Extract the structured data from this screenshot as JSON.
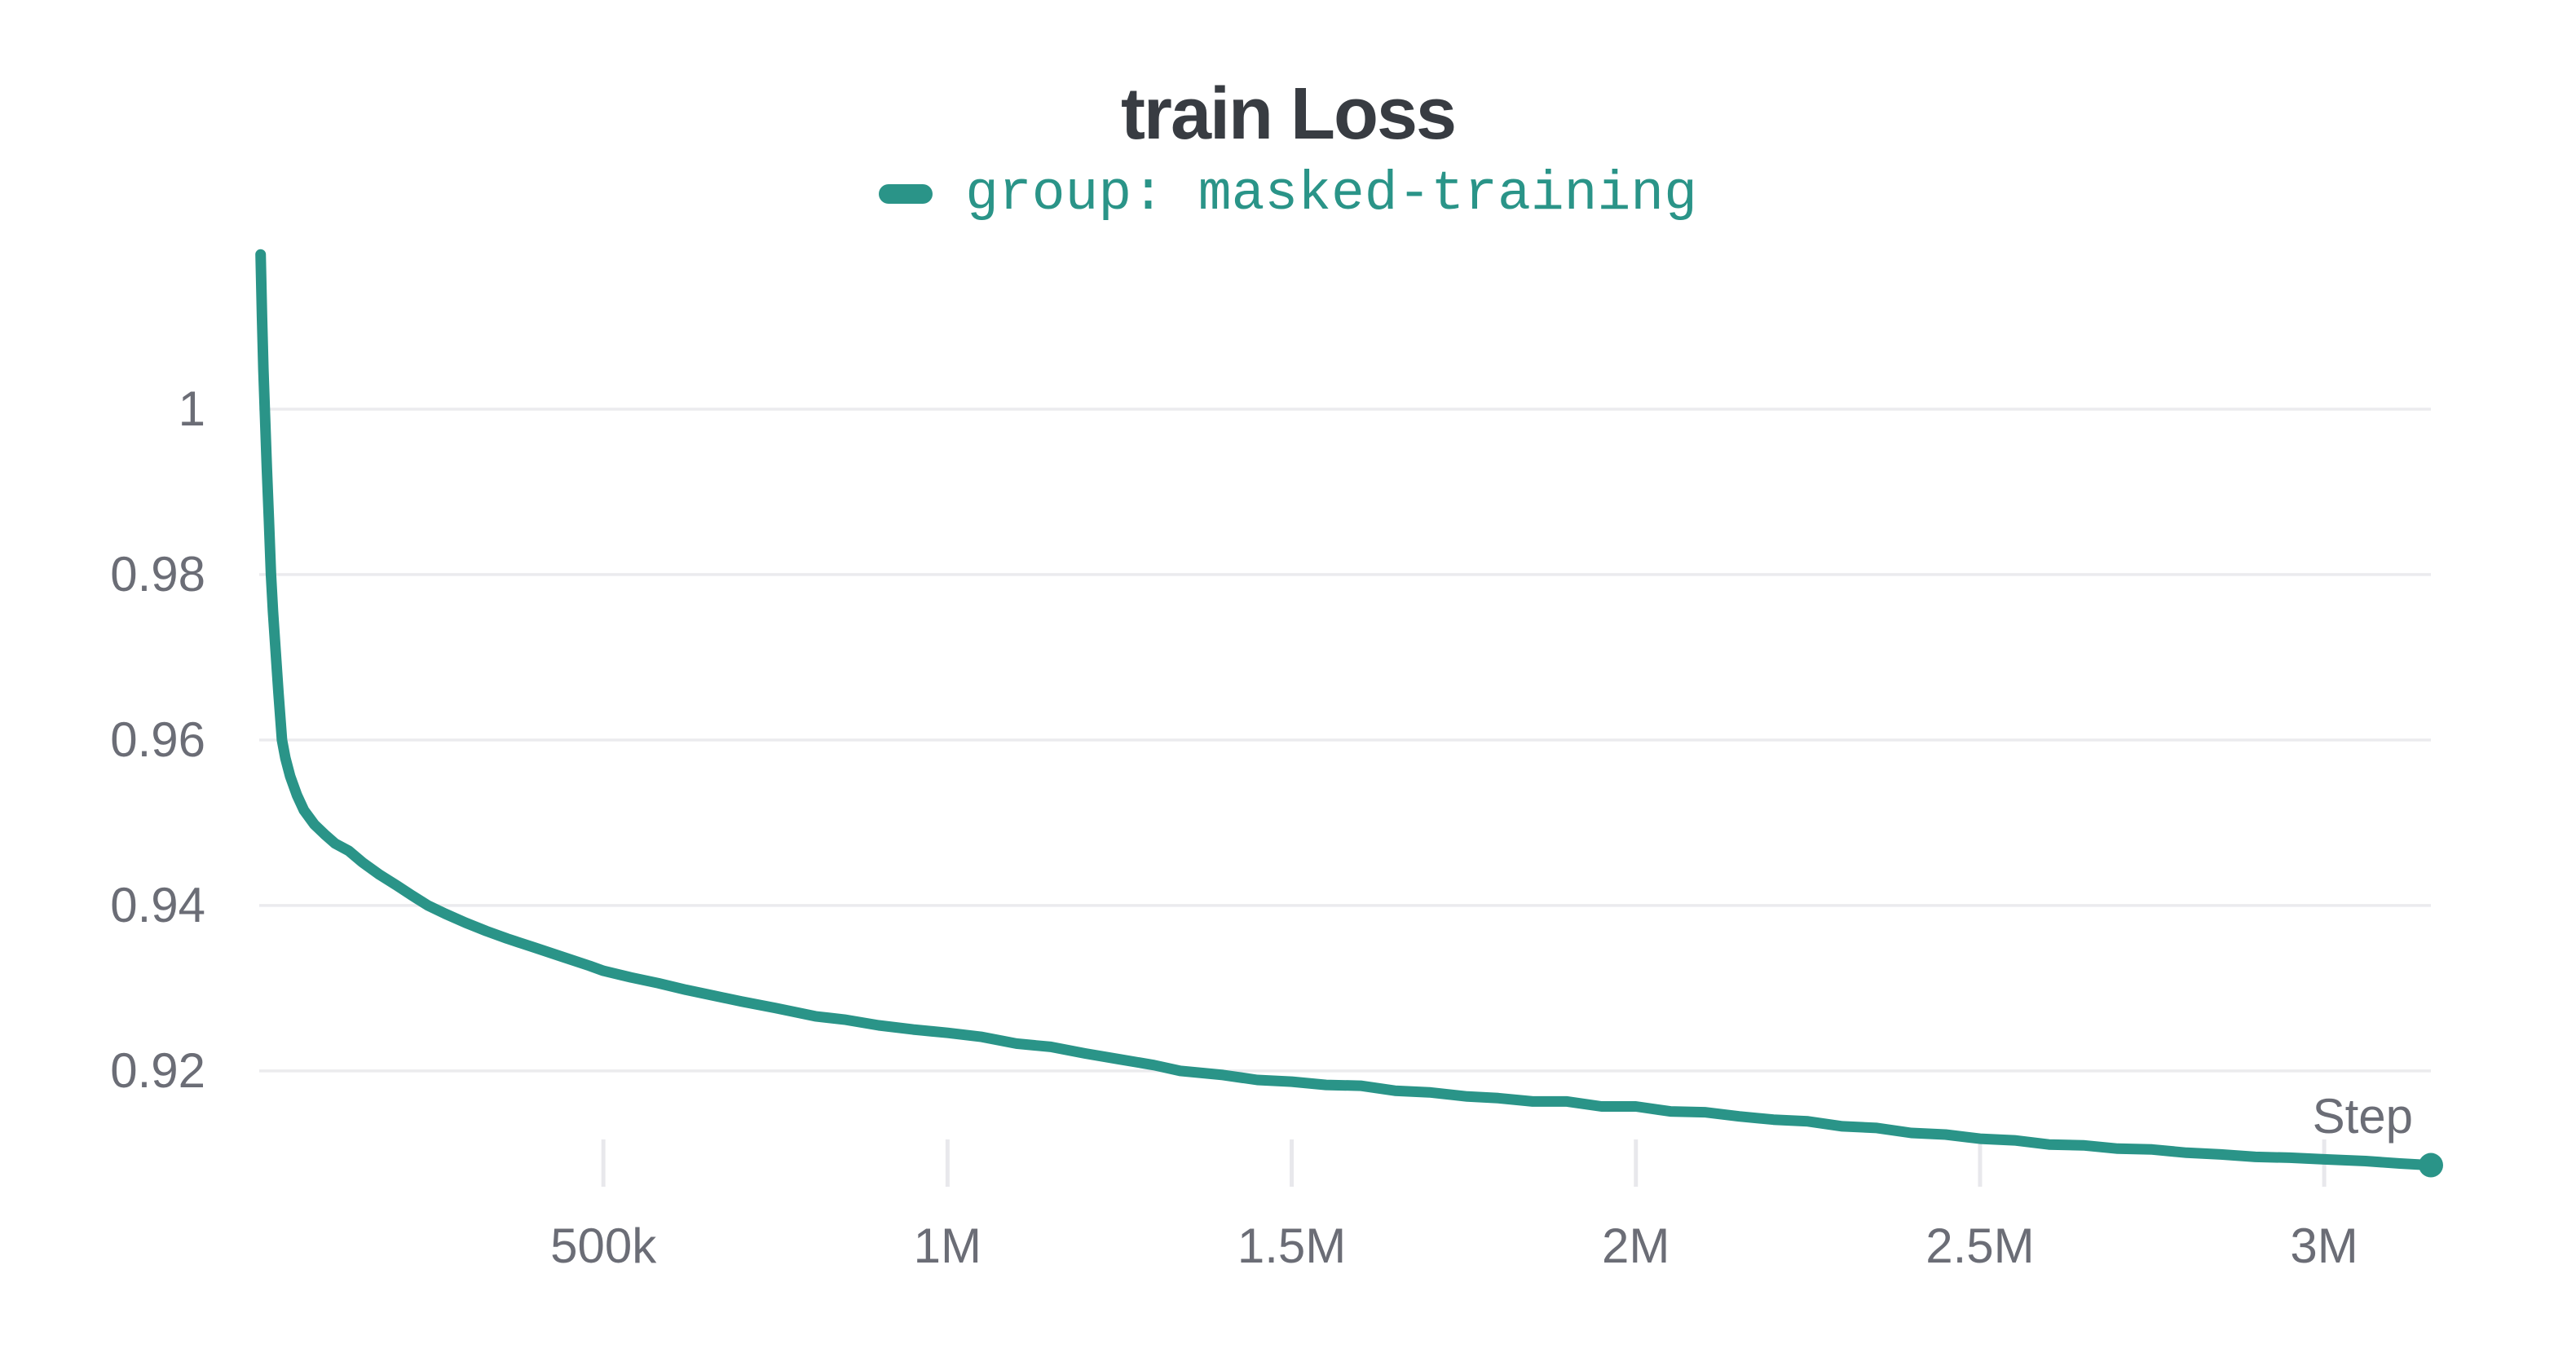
{
  "panel": {
    "title": "train Loss"
  },
  "colors": {
    "accent_teal": "#2a9488",
    "title_text": "#383c42",
    "tick_text": "#6b6d76",
    "gridline": "#ebebee",
    "tick_mark": "#e8e8ec",
    "background": "#ffffff"
  },
  "chart_data": {
    "type": "line",
    "title": "train Loss",
    "xlabel": "Step",
    "ylabel": "",
    "legend_position": "top-center",
    "grid": "horizontal-only",
    "x_range": [
      0,
      3155000
    ],
    "y_range": [
      0.9056,
      1.0199
    ],
    "x_ticks": [
      {
        "v": 500000,
        "label": "500k"
      },
      {
        "v": 1000000,
        "label": "1M"
      },
      {
        "v": 1500000,
        "label": "1.5M"
      },
      {
        "v": 2000000,
        "label": "2M"
      },
      {
        "v": 2500000,
        "label": "2.5M"
      },
      {
        "v": 3000000,
        "label": "3M"
      }
    ],
    "y_ticks": [
      {
        "v": 1.0,
        "label": "1"
      },
      {
        "v": 0.98,
        "label": "0.98"
      },
      {
        "v": 0.96,
        "label": "0.96"
      },
      {
        "v": 0.94,
        "label": "0.94"
      },
      {
        "v": 0.92,
        "label": "0.92"
      }
    ],
    "series": [
      {
        "name": "group: masked-training",
        "color": "#2a9488",
        "end_marker": true,
        "final_value": 0.9086,
        "points": [
          [
            2000,
            1.0187
          ],
          [
            4000,
            1.0112
          ],
          [
            6000,
            1.0048
          ],
          [
            8000,
            1.0
          ],
          [
            11000,
            0.993
          ],
          [
            14000,
            0.9868
          ],
          [
            17000,
            0.98
          ],
          [
            20000,
            0.9755
          ],
          [
            24000,
            0.9705
          ],
          [
            28000,
            0.9657
          ],
          [
            33000,
            0.96
          ],
          [
            38000,
            0.9578
          ],
          [
            45000,
            0.9556
          ],
          [
            55000,
            0.9533
          ],
          [
            65000,
            0.9515
          ],
          [
            80000,
            0.9498
          ],
          [
            95000,
            0.9486
          ],
          [
            110000,
            0.9475
          ],
          [
            130000,
            0.9466
          ],
          [
            150000,
            0.9452
          ],
          [
            175000,
            0.9437
          ],
          [
            200000,
            0.9424
          ],
          [
            222000,
            0.9412
          ],
          [
            245000,
            0.94
          ],
          [
            270000,
            0.939
          ],
          [
            300000,
            0.9379
          ],
          [
            330000,
            0.9369
          ],
          [
            360000,
            0.936
          ],
          [
            400000,
            0.9349
          ],
          [
            440000,
            0.9338
          ],
          [
            480000,
            0.9327
          ],
          [
            500000,
            0.9321
          ],
          [
            540000,
            0.9313
          ],
          [
            580000,
            0.9306
          ],
          [
            620000,
            0.9298
          ],
          [
            660000,
            0.9291
          ],
          [
            700000,
            0.9284
          ],
          [
            750000,
            0.9276
          ],
          [
            808000,
            0.9266
          ],
          [
            850000,
            0.9262
          ],
          [
            900000,
            0.9255
          ],
          [
            950000,
            0.925
          ],
          [
            1000000,
            0.9246
          ],
          [
            1050000,
            0.9241
          ],
          [
            1100000,
            0.9233
          ],
          [
            1150000,
            0.9229
          ],
          [
            1200000,
            0.9221
          ],
          [
            1250000,
            0.9214
          ],
          [
            1300000,
            0.9207
          ],
          [
            1338000,
            0.92
          ],
          [
            1400000,
            0.9195
          ],
          [
            1450000,
            0.9189
          ],
          [
            1500000,
            0.9187
          ],
          [
            1550000,
            0.9183
          ],
          [
            1600000,
            0.9182
          ],
          [
            1650000,
            0.9176
          ],
          [
            1700000,
            0.9174
          ],
          [
            1755000,
            0.9169
          ],
          [
            1800000,
            0.9167
          ],
          [
            1850000,
            0.9163
          ],
          [
            1900000,
            0.9163
          ],
          [
            1950000,
            0.9157
          ],
          [
            2000000,
            0.9157
          ],
          [
            2050000,
            0.9151
          ],
          [
            2100000,
            0.915
          ],
          [
            2150000,
            0.9145
          ],
          [
            2200000,
            0.9141
          ],
          [
            2250000,
            0.9139
          ],
          [
            2300000,
            0.9133
          ],
          [
            2350000,
            0.9131
          ],
          [
            2400000,
            0.9125
          ],
          [
            2450000,
            0.9123
          ],
          [
            2500000,
            0.9118
          ],
          [
            2550000,
            0.9116
          ],
          [
            2600000,
            0.9111
          ],
          [
            2650000,
            0.911
          ],
          [
            2700000,
            0.9106
          ],
          [
            2750000,
            0.9105
          ],
          [
            2800000,
            0.9101
          ],
          [
            2850000,
            0.9099
          ],
          [
            2900000,
            0.9096
          ],
          [
            2950000,
            0.9095
          ],
          [
            3000000,
            0.9093
          ],
          [
            3060000,
            0.9091
          ],
          [
            3110000,
            0.9088
          ],
          [
            3155000,
            0.9086
          ]
        ]
      }
    ]
  }
}
